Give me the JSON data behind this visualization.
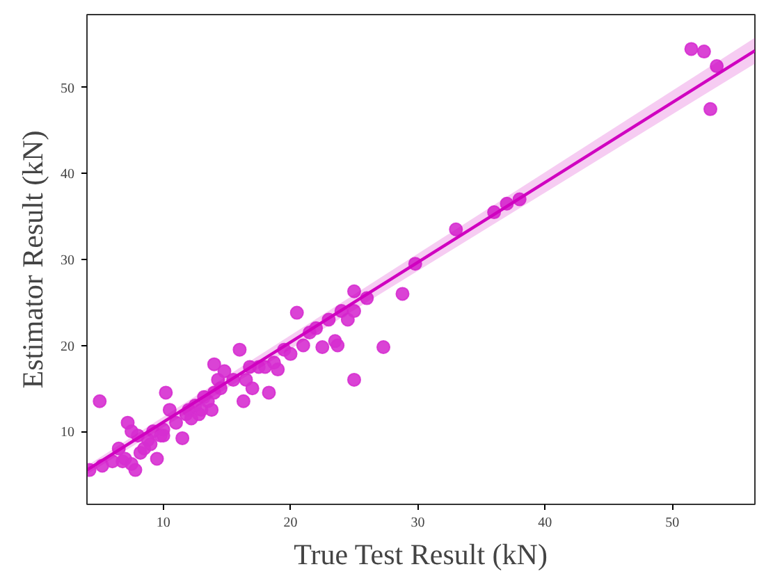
{
  "chart_data": {
    "type": "scatter",
    "xlabel": "True Test Result (kN)",
    "ylabel": "Estimator Result (kN)",
    "xlim": [
      4,
      56.5
    ],
    "ylim": [
      1.5,
      58.5
    ],
    "xticks": [
      10,
      20,
      30,
      40,
      50
    ],
    "yticks": [
      10,
      20,
      30,
      40,
      50
    ],
    "grid": false,
    "marker": "circle",
    "series": [
      {
        "color": "#d62fd0",
        "x": [
          4.2,
          5,
          5.2,
          6,
          6.5,
          6.8,
          7,
          7.2,
          7.5,
          7.5,
          7.8,
          8,
          8.2,
          8.5,
          8.8,
          9,
          9.2,
          9.5,
          9.8,
          10,
          10,
          10.2,
          10.5,
          11,
          11.5,
          11.8,
          12,
          12.2,
          12.5,
          12.8,
          13,
          13.2,
          13.5,
          13.8,
          14,
          14,
          14.3,
          14.5,
          14.8,
          15.5,
          16,
          16.3,
          16.5,
          16.8,
          17,
          17.5,
          18,
          18.3,
          18.7,
          19,
          19.5,
          20,
          20.5,
          21,
          21.5,
          22,
          22.5,
          23,
          23.5,
          23.7,
          24,
          24.5,
          25,
          25,
          25,
          26,
          27.3,
          28.8,
          29.8,
          33,
          36,
          37,
          38,
          51.5,
          52.5,
          53,
          53.5
        ],
        "values": [
          5.5,
          13.5,
          6,
          6.5,
          8,
          6.5,
          6.8,
          11,
          10,
          6.2,
          5.5,
          9.5,
          7.5,
          8,
          9,
          8.5,
          10,
          6.8,
          9.5,
          10.2,
          9.5,
          14.5,
          12.5,
          11,
          9.2,
          12,
          12.5,
          11.5,
          13,
          12,
          12.5,
          14,
          13.5,
          12.5,
          17.8,
          14.5,
          16,
          15,
          17,
          16,
          19.5,
          13.5,
          16,
          17.5,
          15,
          17.5,
          17.5,
          14.5,
          18,
          17.2,
          19.5,
          19,
          23.8,
          20,
          21.5,
          22,
          19.8,
          23,
          20.5,
          20,
          24,
          23,
          26.3,
          16,
          24,
          25.5,
          19.8,
          26,
          29.5,
          33.5,
          35.5,
          36.5,
          37,
          54.5,
          54.2,
          47.5,
          52.5
        ]
      },
      {
        "type": "line",
        "color": "#d000c0",
        "marker": "none",
        "line_style": "solid",
        "x": [
          4,
          56.5
        ],
        "values": [
          5.5,
          54.3
        ],
        "lower": [
          5.0,
          52.8
        ],
        "upper": [
          6.0,
          55.8
        ]
      }
    ]
  }
}
